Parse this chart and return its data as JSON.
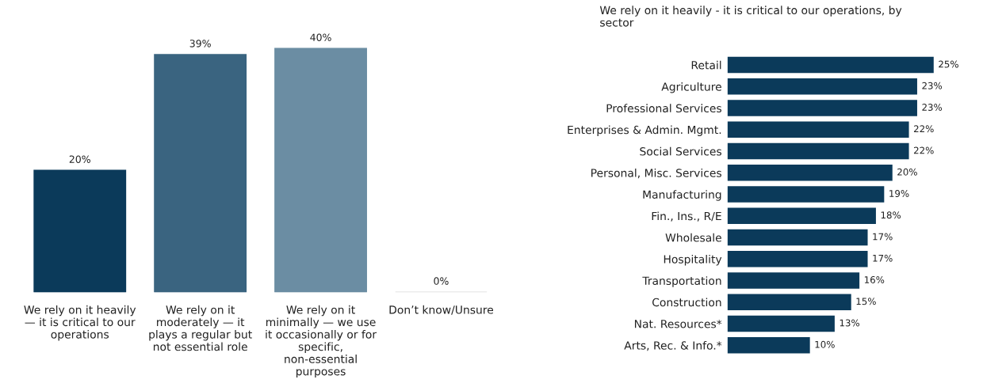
{
  "chart_data": [
    {
      "type": "bar",
      "categories": [
        "We rely on it heavily\n— it is critical to our\noperations",
        "We rely on it\nmoderately — it\nplays a regular but\nnot essential role",
        "We rely on it\nminimally — we use\nit occasionally or for\nspecific,\nnon-essential\npurposes",
        "Don’t know/Unsure"
      ],
      "values": [
        20,
        39,
        40,
        0
      ],
      "colors": [
        "#0b3a5a",
        "#3a6480",
        "#6b8da3",
        "#d9d9d9"
      ],
      "value_labels": [
        "20%",
        "39%",
        "40%",
        "0%"
      ]
    },
    {
      "type": "bar",
      "orientation": "horizontal",
      "title": "We rely on it heavily - it is critical to our operations, by\nsector",
      "categories": [
        "Retail",
        "Agriculture",
        "Professional Services",
        "Enterprises & Admin. Mgmt.",
        "Social Services",
        "Personal, Misc. Services",
        "Manufacturing",
        "Fin., Ins., R/E",
        "Wholesale",
        "Hospitality",
        "Transportation",
        "Construction",
        "Nat. Resources*",
        "Arts, Rec. & Info.*"
      ],
      "values": [
        25,
        23,
        23,
        22,
        22,
        20,
        19,
        18,
        17,
        17,
        16,
        15,
        13,
        10
      ],
      "color": "#0b3a5a",
      "value_labels": [
        "25%",
        "23%",
        "23%",
        "22%",
        "22%",
        "20%",
        "19%",
        "18%",
        "17%",
        "17%",
        "16%",
        "15%",
        "13%",
        "10%"
      ]
    }
  ]
}
